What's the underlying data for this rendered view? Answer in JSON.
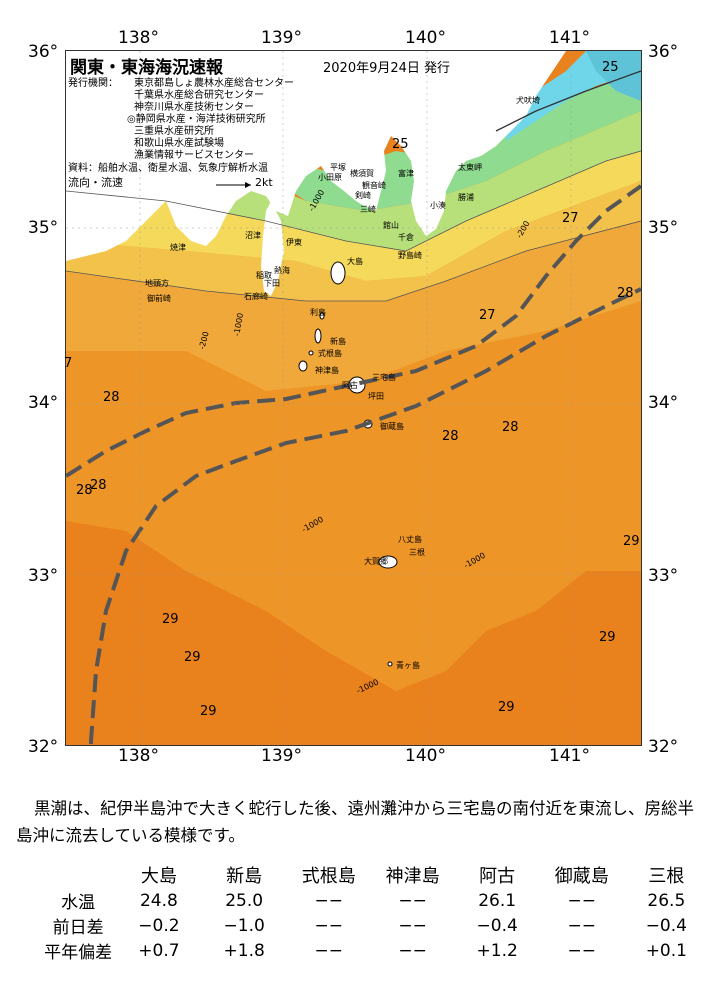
{
  "title": "関東・東海海況速報",
  "issued": "2020年9月24日 発行",
  "publishers": {
    "label": "発行機関：",
    "items": [
      "東京都島しょ農林水産総合センター",
      "千葉県水産総合研究センター",
      "神奈川県水産技術センター",
      "◎静岡県水産・海洋技術研究所",
      "三重県水産研究所",
      "和歌山県水産試験場",
      "漁業情報サービスセンター"
    ]
  },
  "sources": "資料：船舶水温、衛星水温、気象庁解析水温",
  "current_legend": {
    "label": "流向・流速",
    "value": "2kt"
  },
  "axes": {
    "lon_labels": [
      "138°",
      "139°",
      "140°",
      "141°"
    ],
    "lat_labels": [
      "36°",
      "35°",
      "34°",
      "33°",
      "32°"
    ]
  },
  "isotherm_labels": [
    "25",
    "25",
    "27",
    "28",
    "27",
    "28",
    "28",
    "28",
    "28",
    "28",
    "28",
    "29",
    "29",
    "29",
    "29",
    "29",
    "29",
    "7"
  ],
  "places": [
    "小田原",
    "平塚",
    "横須賀",
    "観音崎",
    "剣崎",
    "三崎",
    "富津",
    "館山",
    "千倉",
    "野島崎",
    "小湊",
    "勝浦",
    "太東岬",
    "犬吠埼",
    "焼津",
    "沼津",
    "伊東",
    "熱海",
    "稲取",
    "下田",
    "石廊崎",
    "地頭方",
    "御前崎",
    "大島",
    "利島",
    "新島",
    "式根島",
    "神津島",
    "三宅島",
    "阿古",
    "坪田",
    "御蔵島",
    "八丈島",
    "大賀郷",
    "三根",
    "青ヶ島"
  ],
  "depth_labels": [
    "-1000",
    "-1000",
    "-200",
    "-200",
    "-1000",
    "-1000",
    "-1000",
    "-1000",
    "-1000"
  ],
  "description": "黒潮は、紀伊半島沖で大きく蛇行した後、遠州灘沖から三宅島の南付近を東流し、房総半島沖に流去している模様です。",
  "table": {
    "columns": [
      "大島",
      "新島",
      "式根島",
      "神津島",
      "阿古",
      "御蔵島",
      "三根"
    ],
    "rows": [
      {
        "label": "水温",
        "values": [
          "24.8",
          "25.0",
          "−−",
          "−−",
          "26.1",
          "−−",
          "26.5"
        ]
      },
      {
        "label": "前日差",
        "values": [
          "−0.2",
          "−1.0",
          "−−",
          "−−",
          "−0.4",
          "−−",
          "−0.4"
        ]
      },
      {
        "label": "平年偏差",
        "values": [
          "+0.7",
          "+1.8",
          "−−",
          "−−",
          "+1.2",
          "−−",
          "+0.1"
        ]
      }
    ]
  },
  "colors": {
    "land": "#ffffff",
    "sst_25": "#6fd6ea",
    "sst_26": "#8fdb8f",
    "sst_26b": "#b8e07a",
    "sst_27": "#f5d95a",
    "sst_27b": "#f3c24a",
    "sst_28": "#f1a83a",
    "sst_28b": "#ee9528",
    "sst_29": "#e9821c",
    "kuroshio_line": "#555555"
  }
}
